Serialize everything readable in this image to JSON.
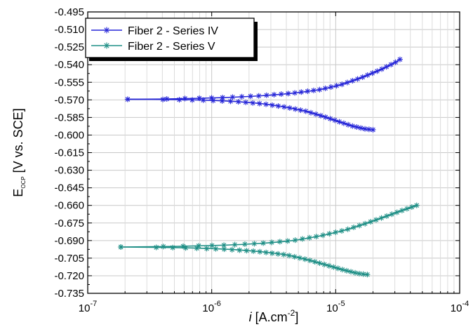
{
  "chart_data": {
    "type": "line",
    "xscale": "log",
    "xlim": [
      1e-07,
      0.0001
    ],
    "ylim": [
      -0.735,
      -0.495
    ],
    "grid": true,
    "legend_position": "top-left",
    "xlabel_italic": "i",
    "xlabel_text": " [A.cm",
    "xlabel_sup": "-2",
    "xlabel_end": "]",
    "ylabel_main": "E",
    "ylabel_sub": "OCP",
    "ylabel_rest": " [V vs. SCE]",
    "x_ticks": [
      {
        "value": 1e-07,
        "base": "10",
        "exp": "-7"
      },
      {
        "value": 1e-06,
        "base": "10",
        "exp": "-6"
      },
      {
        "value": 1e-05,
        "base": "10",
        "exp": "-5"
      },
      {
        "value": 0.0001,
        "base": "10",
        "exp": "-4"
      }
    ],
    "y_tick_values": [
      -0.495,
      -0.51,
      -0.525,
      -0.54,
      -0.555,
      -0.57,
      -0.585,
      -0.6,
      -0.615,
      -0.63,
      -0.645,
      -0.66,
      -0.675,
      -0.69,
      -0.705,
      -0.72,
      -0.735
    ],
    "y_tick_labels": [
      "-0.495",
      "-0.510",
      "-0.525",
      "-0.540",
      "-0.555",
      "-0.570",
      "-0.585",
      "-0.600",
      "-0.615",
      "-0.630",
      "-0.645",
      "-0.660",
      "-0.675",
      "-0.690",
      "-0.705",
      "-0.720",
      "-0.735"
    ],
    "series": [
      {
        "name": "Fiber 2 - Series IV",
        "color": "#2727d8",
        "marker": "asterisk",
        "branches": [
          {
            "x": [
              2.1e-07,
              4.6e-07,
              1.2e-06,
              2.4e-06,
              4.5e-06,
              7.5e-06,
              1.1e-05,
              1.6e-05,
              2.3e-05,
              3e-05,
              3.3e-05
            ],
            "y": [
              -0.5695,
              -0.5692,
              -0.5681,
              -0.5666,
              -0.5643,
              -0.5612,
              -0.5571,
              -0.5512,
              -0.5443,
              -0.5383,
              -0.5355
            ]
          },
          {
            "x": [
              2.1e-07,
              4.5e-07,
              9e-07,
              1.6e-06,
              2.6e-06,
              4e-06,
              5.8e-06,
              8e-06,
              1.05e-05,
              1.35e-05,
              1.7e-05,
              2e-05
            ],
            "y": [
              -0.5695,
              -0.5697,
              -0.5703,
              -0.5715,
              -0.5734,
              -0.5763,
              -0.5798,
              -0.5842,
              -0.5884,
              -0.5922,
              -0.5947,
              -0.5955
            ]
          }
        ]
      },
      {
        "name": "Fiber 2 - Series V",
        "color": "#1f8f86",
        "marker": "asterisk",
        "branches": [
          {
            "x": [
              1.85e-07,
              5e-07,
              1.2e-06,
              2.4e-06,
              4.5e-06,
              7.5e-06,
              1.2e-05,
              1.8e-05,
              2.6e-05,
              3.5e-05,
              4.5e-05
            ],
            "y": [
              -0.6955,
              -0.695,
              -0.694,
              -0.6925,
              -0.69,
              -0.686,
              -0.681,
              -0.675,
              -0.669,
              -0.664,
              -0.66
            ]
          },
          {
            "x": [
              1.85e-07,
              5e-07,
              1.2e-06,
              2.3e-06,
              4e-06,
              6e-06,
              8.5e-06,
              1.15e-05,
              1.5e-05,
              1.8e-05
            ],
            "y": [
              -0.6955,
              -0.696,
              -0.6972,
              -0.6992,
              -0.7022,
              -0.7065,
              -0.711,
              -0.715,
              -0.718,
              -0.719
            ]
          }
        ]
      }
    ]
  }
}
